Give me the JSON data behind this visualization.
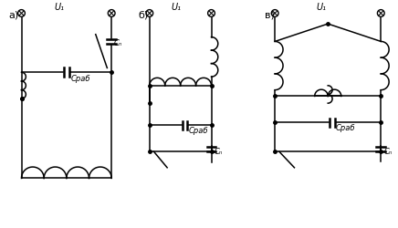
{
  "bg_color": "#ffffff",
  "line_color": "#000000",
  "label_a": "а)",
  "label_b": "б)",
  "label_v": "в)",
  "u1_label": "U₁",
  "cn_label": "Cₙ",
  "crab_label": "Cраб",
  "figsize": [
    4.36,
    2.51
  ],
  "dpi": 100
}
